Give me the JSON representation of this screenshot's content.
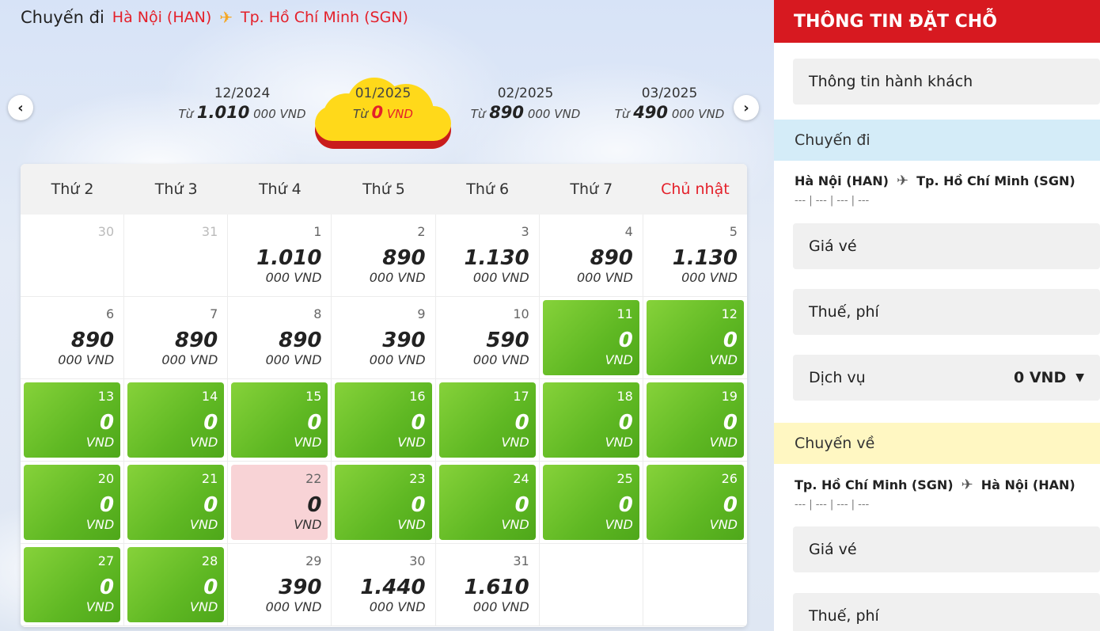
{
  "header": {
    "label": "Chuyến đi",
    "from": "Hà Nội (HAN)",
    "to": "Tp. Hồ Chí Minh (SGN)"
  },
  "months": [
    {
      "name": "12/2024",
      "prefix": "Từ",
      "price": "1.010",
      "unit": "000 VND"
    },
    {
      "name": "01/2025",
      "prefix": "Từ",
      "price": "0",
      "unit": "VND",
      "active": true
    },
    {
      "name": "02/2025",
      "prefix": "Từ",
      "price": "890",
      "unit": "000 VND"
    },
    {
      "name": "03/2025",
      "prefix": "Từ",
      "price": "490",
      "unit": "000 VND"
    }
  ],
  "weekdays": [
    "Thứ 2",
    "Thứ 3",
    "Thứ 4",
    "Thứ 5",
    "Thứ 6",
    "Thứ 7",
    "Chủ nhật"
  ],
  "days": [
    {
      "day": "30",
      "price": "",
      "unit": "",
      "style": "muted"
    },
    {
      "day": "31",
      "price": "",
      "unit": "",
      "style": "muted"
    },
    {
      "day": "1",
      "price": "1.010",
      "unit": "000 VND",
      "style": "plain"
    },
    {
      "day": "2",
      "price": "890",
      "unit": "000 VND",
      "style": "plain"
    },
    {
      "day": "3",
      "price": "1.130",
      "unit": "000 VND",
      "style": "plain"
    },
    {
      "day": "4",
      "price": "890",
      "unit": "000 VND",
      "style": "plain"
    },
    {
      "day": "5",
      "price": "1.130",
      "unit": "000 VND",
      "style": "plain"
    },
    {
      "day": "6",
      "price": "890",
      "unit": "000 VND",
      "style": "plain"
    },
    {
      "day": "7",
      "price": "890",
      "unit": "000 VND",
      "style": "plain"
    },
    {
      "day": "8",
      "price": "890",
      "unit": "000 VND",
      "style": "plain"
    },
    {
      "day": "9",
      "price": "390",
      "unit": "000 VND",
      "style": "plain"
    },
    {
      "day": "10",
      "price": "590",
      "unit": "000 VND",
      "style": "plain"
    },
    {
      "day": "11",
      "price": "0",
      "unit": "VND",
      "style": "green"
    },
    {
      "day": "12",
      "price": "0",
      "unit": "VND",
      "style": "green"
    },
    {
      "day": "13",
      "price": "0",
      "unit": "VND",
      "style": "green"
    },
    {
      "day": "14",
      "price": "0",
      "unit": "VND",
      "style": "green"
    },
    {
      "day": "15",
      "price": "0",
      "unit": "VND",
      "style": "green"
    },
    {
      "day": "16",
      "price": "0",
      "unit": "VND",
      "style": "green"
    },
    {
      "day": "17",
      "price": "0",
      "unit": "VND",
      "style": "green"
    },
    {
      "day": "18",
      "price": "0",
      "unit": "VND",
      "style": "green"
    },
    {
      "day": "19",
      "price": "0",
      "unit": "VND",
      "style": "green"
    },
    {
      "day": "20",
      "price": "0",
      "unit": "VND",
      "style": "green"
    },
    {
      "day": "21",
      "price": "0",
      "unit": "VND",
      "style": "green"
    },
    {
      "day": "22",
      "price": "0",
      "unit": "VND",
      "style": "pink"
    },
    {
      "day": "23",
      "price": "0",
      "unit": "VND",
      "style": "green"
    },
    {
      "day": "24",
      "price": "0",
      "unit": "VND",
      "style": "green"
    },
    {
      "day": "25",
      "price": "0",
      "unit": "VND",
      "style": "green"
    },
    {
      "day": "26",
      "price": "0",
      "unit": "VND",
      "style": "green"
    },
    {
      "day": "27",
      "price": "0",
      "unit": "VND",
      "style": "green"
    },
    {
      "day": "28",
      "price": "0",
      "unit": "VND",
      "style": "green"
    },
    {
      "day": "29",
      "price": "390",
      "unit": "000 VND",
      "style": "plain"
    },
    {
      "day": "30",
      "price": "1.440",
      "unit": "000 VND",
      "style": "plain"
    },
    {
      "day": "31",
      "price": "1.610",
      "unit": "000 VND",
      "style": "plain"
    },
    {
      "day": "",
      "price": "",
      "unit": "",
      "style": "empty"
    },
    {
      "day": "",
      "price": "",
      "unit": "",
      "style": "empty"
    }
  ],
  "panel": {
    "title": "THÔNG TIN ĐẶT CHỖ",
    "passenger": "Thông tin hành khách",
    "outbound": {
      "title": "Chuyến đi",
      "from": "Hà Nội (HAN)",
      "to": "Tp. Hồ Chí Minh (SGN)",
      "placeholder": "--- | --- | --- | ---",
      "fare": "Giá vé",
      "tax": "Thuế, phí",
      "service": "Dịch vụ",
      "service_amount": "0 VND"
    },
    "return": {
      "title": "Chuyến về",
      "from": "Tp. Hồ Chí Minh (SGN)",
      "to": "Hà Nội (HAN)",
      "placeholder": "--- | --- | --- | ---",
      "fare": "Giá vé",
      "tax": "Thuế, phí"
    }
  }
}
